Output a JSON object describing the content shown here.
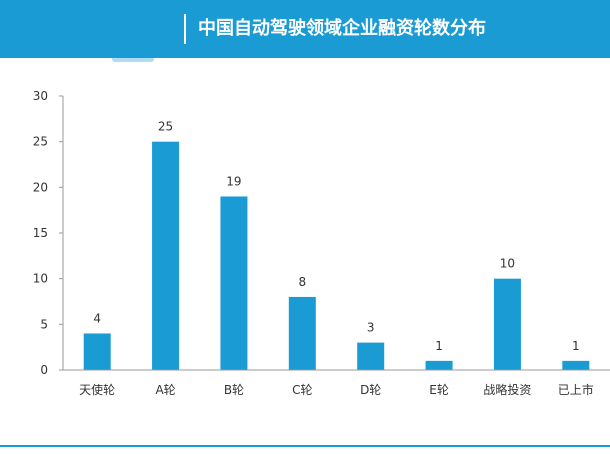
{
  "header": {
    "title": "中国自动驾驶领域企业融资轮数分布"
  },
  "colors": {
    "accent": "#1b9bd3",
    "bar": "#1b9bd3",
    "axis": "#6b6b6b",
    "text": "#333333"
  },
  "chart_data": {
    "type": "bar",
    "title": "中国自动驾驶领域企业融资轮数分布",
    "xlabel": "",
    "ylabel": "",
    "categories": [
      "天使轮",
      "A轮",
      "B轮",
      "C轮",
      "D轮",
      "E轮",
      "战略投资",
      "已上市"
    ],
    "values": [
      4,
      25,
      19,
      8,
      3,
      1,
      10,
      1
    ],
    "data_labels": [
      "4",
      "25",
      "19",
      "8",
      "3",
      "1",
      "10",
      "1"
    ],
    "ylim": [
      0,
      30
    ],
    "yticks": [
      0,
      5,
      10,
      15,
      20,
      25,
      30
    ],
    "ytick_labels": [
      "0",
      "5",
      "10",
      "15",
      "20",
      "25",
      "30"
    ],
    "grid": false,
    "legend": "none"
  }
}
